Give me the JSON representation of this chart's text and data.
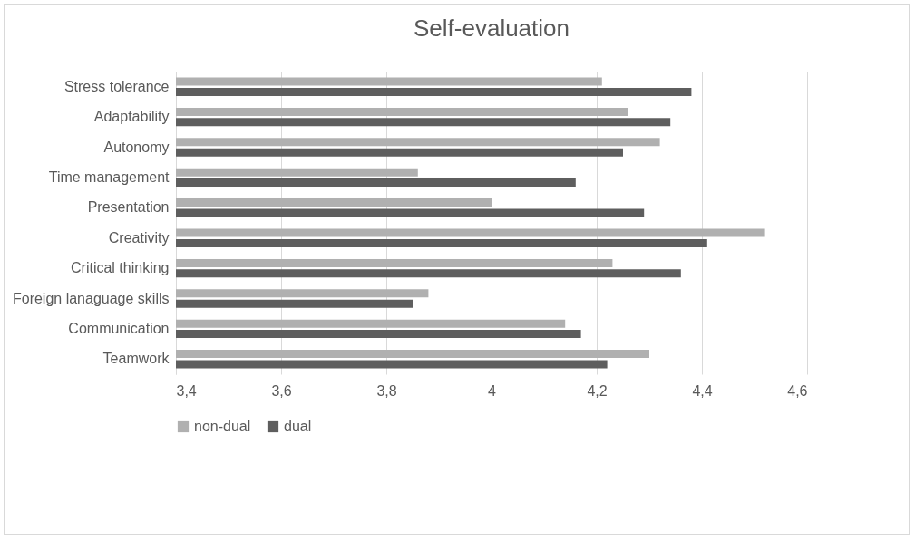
{
  "chart_data": {
    "type": "bar",
    "orientation": "horizontal",
    "title": "Self-evaluation",
    "categories": [
      "Stress tolerance",
      "Adaptability",
      "Autonomy",
      "Time management",
      "Presentation",
      "Creativity",
      "Critical thinking",
      "Foreign lanaguage skills",
      "Communication",
      "Teamwork"
    ],
    "series": [
      {
        "name": "non-dual",
        "color": "#b0b0b0",
        "values": [
          4.21,
          4.26,
          4.32,
          3.86,
          4.0,
          4.52,
          4.23,
          3.88,
          4.14,
          4.3
        ]
      },
      {
        "name": "dual",
        "color": "#5e5e5e",
        "values": [
          4.38,
          4.34,
          4.25,
          4.16,
          4.29,
          4.41,
          4.36,
          3.85,
          4.17,
          4.22
        ]
      }
    ],
    "xlim": [
      3.4,
      4.6
    ],
    "xticks": [
      {
        "value": 3.4,
        "label": "3,4"
      },
      {
        "value": 3.6,
        "label": "3,6"
      },
      {
        "value": 3.8,
        "label": "3,8"
      },
      {
        "value": 4,
        "label": "4"
      },
      {
        "value": 4.2,
        "label": "4,2"
      },
      {
        "value": 4.4,
        "label": "4,4"
      },
      {
        "value": 4.6,
        "label": "4,6"
      }
    ],
    "grid": "x",
    "legend": "bottom"
  }
}
